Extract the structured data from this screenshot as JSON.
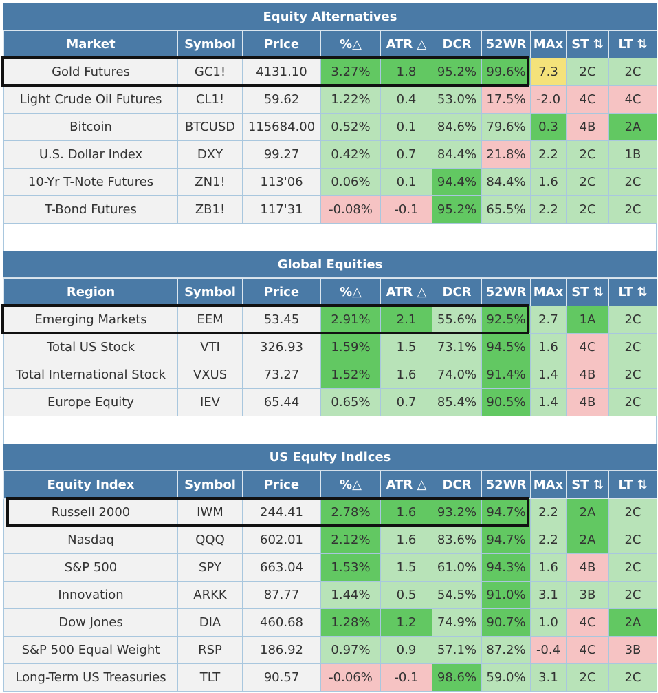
{
  "colors": {
    "header": "#4a7aa6",
    "light_green": "#b8e3b8",
    "green": "#62c862",
    "red": "#f6c3c3",
    "yellow": "#f4e27a",
    "neutral": "#f2f2f2"
  },
  "sections": [
    {
      "title": "Equity Alternatives",
      "headers": [
        "Market",
        "Symbol",
        "Price",
        "%△",
        "ATR △",
        "DCR",
        "52WR",
        "MAx",
        "ST ⇅",
        "LT ⇅"
      ],
      "highlight_row": 0,
      "rows": [
        {
          "cells": [
            "Gold Futures",
            "GC1!",
            "4131.10",
            "3.27%",
            "1.8",
            "95.2%",
            "99.6%",
            "7.3",
            "2C",
            "2C"
          ],
          "status": [
            "n",
            "n",
            "n",
            "g",
            "g",
            "g",
            "g",
            "y",
            "lg",
            "lg"
          ]
        },
        {
          "cells": [
            "Light Crude Oil Futures",
            "CL1!",
            "59.62",
            "1.22%",
            "0.4",
            "53.0%",
            "17.5%",
            "-2.0",
            "4C",
            "4C"
          ],
          "status": [
            "n",
            "n",
            "n",
            "lg",
            "lg",
            "lg",
            "r",
            "r",
            "r",
            "r"
          ]
        },
        {
          "cells": [
            "Bitcoin",
            "BTCUSD",
            "115684.00",
            "0.52%",
            "0.1",
            "84.6%",
            "79.6%",
            "0.3",
            "4B",
            "2A"
          ],
          "status": [
            "n",
            "n",
            "n",
            "lg",
            "lg",
            "lg",
            "lg",
            "g",
            "r",
            "g"
          ]
        },
        {
          "cells": [
            "U.S. Dollar Index",
            "DXY",
            "99.27",
            "0.42%",
            "0.7",
            "84.4%",
            "21.8%",
            "2.2",
            "2C",
            "1B"
          ],
          "status": [
            "n",
            "n",
            "n",
            "lg",
            "lg",
            "lg",
            "r",
            "lg",
            "lg",
            "lg"
          ]
        },
        {
          "cells": [
            "10-Yr T-Note Futures",
            "ZN1!",
            "113'06",
            "0.06%",
            "0.1",
            "94.4%",
            "84.4%",
            "1.6",
            "2C",
            "2C"
          ],
          "status": [
            "n",
            "n",
            "n",
            "lg",
            "lg",
            "g",
            "lg",
            "lg",
            "lg",
            "lg"
          ]
        },
        {
          "cells": [
            "T-Bond Futures",
            "ZB1!",
            "117'31",
            "-0.08%",
            "-0.1",
            "95.2%",
            "65.5%",
            "2.2",
            "2C",
            "2C"
          ],
          "status": [
            "n",
            "n",
            "n",
            "r",
            "r",
            "g",
            "lg",
            "lg",
            "lg",
            "lg"
          ]
        }
      ]
    },
    {
      "title": "Global Equities",
      "headers": [
        "Region",
        "Symbol",
        "Price",
        "%△",
        "ATR △",
        "DCR",
        "52WR",
        "MAx",
        "ST ⇅",
        "LT ⇅"
      ],
      "highlight_row": 0,
      "rows": [
        {
          "cells": [
            "Emerging Markets",
            "EEM",
            "53.45",
            "2.91%",
            "2.1",
            "55.6%",
            "92.5%",
            "2.7",
            "1A",
            "2C"
          ],
          "status": [
            "n",
            "n",
            "n",
            "g",
            "g",
            "lg",
            "g",
            "lg",
            "g",
            "lg"
          ]
        },
        {
          "cells": [
            "Total US Stock",
            "VTI",
            "326.93",
            "1.59%",
            "1.5",
            "73.1%",
            "94.5%",
            "1.6",
            "4C",
            "2C"
          ],
          "status": [
            "n",
            "n",
            "n",
            "g",
            "lg",
            "lg",
            "g",
            "lg",
            "r",
            "lg"
          ]
        },
        {
          "cells": [
            "Total International Stock",
            "VXUS",
            "73.27",
            "1.52%",
            "1.6",
            "74.0%",
            "91.4%",
            "1.4",
            "4B",
            "2C"
          ],
          "status": [
            "n",
            "n",
            "n",
            "g",
            "lg",
            "lg",
            "g",
            "lg",
            "r",
            "lg"
          ]
        },
        {
          "cells": [
            "Europe Equity",
            "IEV",
            "65.44",
            "0.65%",
            "0.7",
            "85.4%",
            "90.5%",
            "1.4",
            "4B",
            "2C"
          ],
          "status": [
            "n",
            "n",
            "n",
            "lg",
            "lg",
            "lg",
            "g",
            "lg",
            "r",
            "lg"
          ]
        }
      ]
    },
    {
      "title": "US Equity Indices",
      "headers": [
        "Equity Index",
        "Symbol",
        "Price",
        "%△",
        "ATR △",
        "DCR",
        "52WR",
        "MAx",
        "ST ⇅",
        "LT ⇅"
      ],
      "highlight_row": 0,
      "rows": [
        {
          "cells": [
            "Russell 2000",
            "IWM",
            "244.41",
            "2.78%",
            "1.6",
            "93.2%",
            "94.7%",
            "2.2",
            "2A",
            "2C"
          ],
          "status": [
            "n",
            "n",
            "n",
            "g",
            "g",
            "g",
            "g",
            "lg",
            "g",
            "lg"
          ]
        },
        {
          "cells": [
            "Nasdaq",
            "QQQ",
            "602.01",
            "2.12%",
            "1.6",
            "83.6%",
            "94.7%",
            "2.2",
            "2A",
            "2C"
          ],
          "status": [
            "n",
            "n",
            "n",
            "g",
            "lg",
            "lg",
            "g",
            "lg",
            "g",
            "lg"
          ]
        },
        {
          "cells": [
            "S&P 500",
            "SPY",
            "663.04",
            "1.53%",
            "1.5",
            "61.0%",
            "94.3%",
            "1.6",
            "4B",
            "2C"
          ],
          "status": [
            "n",
            "n",
            "n",
            "g",
            "lg",
            "lg",
            "g",
            "lg",
            "r",
            "lg"
          ]
        },
        {
          "cells": [
            "Innovation",
            "ARKK",
            "87.77",
            "1.44%",
            "0.5",
            "54.5%",
            "91.0%",
            "3.1",
            "3B",
            "2C"
          ],
          "status": [
            "n",
            "n",
            "n",
            "lg",
            "lg",
            "lg",
            "g",
            "lg",
            "lg",
            "lg"
          ]
        },
        {
          "cells": [
            "Dow Jones",
            "DIA",
            "460.68",
            "1.28%",
            "1.2",
            "74.9%",
            "90.7%",
            "1.0",
            "4C",
            "2A"
          ],
          "status": [
            "n",
            "n",
            "n",
            "g",
            "g",
            "lg",
            "g",
            "lg",
            "r",
            "g"
          ]
        },
        {
          "cells": [
            "S&P 500 Equal Weight",
            "RSP",
            "186.92",
            "0.97%",
            "0.9",
            "57.1%",
            "87.2%",
            "-0.4",
            "4C",
            "3B"
          ],
          "status": [
            "n",
            "n",
            "n",
            "lg",
            "lg",
            "lg",
            "lg",
            "r",
            "r",
            "r"
          ]
        },
        {
          "cells": [
            "Long-Term US Treasuries",
            "TLT",
            "90.57",
            "-0.06%",
            "-0.1",
            "98.6%",
            "59.0%",
            "3.1",
            "2C",
            "2C"
          ],
          "status": [
            "n",
            "n",
            "n",
            "r",
            "r",
            "g",
            "lg",
            "lg",
            "lg",
            "lg"
          ]
        }
      ]
    }
  ]
}
